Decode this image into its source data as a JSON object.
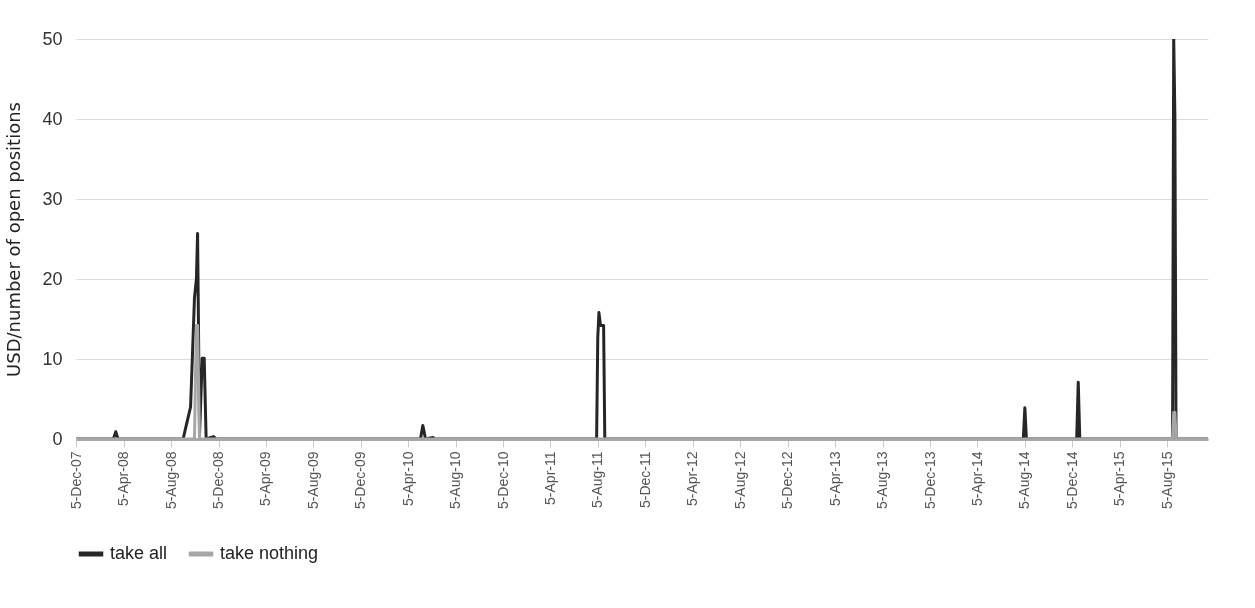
{
  "chart_data": {
    "type": "line",
    "ylabel": "USD/number of open positions",
    "legend": "bottom",
    "grid": "y",
    "x": [
      "2007-12-05",
      "2008-03-10",
      "2008-03-16",
      "2008-03-22",
      "2008-09-05",
      "2008-09-11",
      "2008-09-24",
      "2008-09-29",
      "2008-10-04",
      "2008-10-09",
      "2008-10-12",
      "2008-10-17",
      "2008-10-24",
      "2008-10-29",
      "2008-11-03",
      "2008-11-22",
      "2008-11-28",
      "2010-05-07",
      "2010-05-13",
      "2010-05-20",
      "2010-06-08",
      "2010-06-12",
      "2011-08-02",
      "2011-08-05",
      "2011-08-08",
      "2011-08-12",
      "2011-08-20",
      "2011-08-23",
      "2014-08-01",
      "2014-08-05",
      "2014-08-09",
      "2014-12-16",
      "2014-12-20",
      "2014-12-24",
      "2015-08-19",
      "2015-08-22",
      "2015-08-25",
      "2015-08-28",
      "2015-11-18"
    ],
    "series": [
      {
        "name": "take all",
        "color": "#262626",
        "values": [
          0,
          0,
          0.9,
          0,
          0,
          1.3,
          4,
          10.7,
          17.6,
          20,
          25.7,
          0.5,
          10.1,
          10.1,
          0,
          0.3,
          0,
          0,
          1.7,
          0,
          0.2,
          0,
          0,
          12.7,
          15.8,
          14.2,
          14.2,
          0,
          0,
          3.9,
          0,
          0,
          7.1,
          0,
          0,
          50,
          40.5,
          0,
          0
        ]
      },
      {
        "name": "take nothing",
        "color": "#a6a6a6",
        "values": [
          0,
          0,
          0,
          0,
          0,
          0,
          0,
          0,
          0,
          14.2,
          14.2,
          0,
          0,
          0,
          0,
          0,
          0,
          0,
          0,
          0,
          0,
          0,
          0,
          0,
          0,
          0,
          0,
          0,
          0,
          0,
          0,
          0,
          0,
          0,
          0,
          3.3,
          3.3,
          0,
          0
        ]
      }
    ],
    "xlim": [
      "2007-12-05",
      "2015-11-18"
    ],
    "xticks": [
      {
        "value": "2007-12-05",
        "label": "5-Dec-07"
      },
      {
        "value": "2008-04-05",
        "label": "5-Apr-08"
      },
      {
        "value": "2008-08-05",
        "label": "5-Aug-08"
      },
      {
        "value": "2008-12-05",
        "label": "5-Dec-08"
      },
      {
        "value": "2009-04-05",
        "label": "5-Apr-09"
      },
      {
        "value": "2009-08-05",
        "label": "5-Aug-09"
      },
      {
        "value": "2009-12-05",
        "label": "5-Dec-09"
      },
      {
        "value": "2010-04-05",
        "label": "5-Apr-10"
      },
      {
        "value": "2010-08-05",
        "label": "5-Aug-10"
      },
      {
        "value": "2010-12-05",
        "label": "5-Dec-10"
      },
      {
        "value": "2011-04-05",
        "label": "5-Apr-11"
      },
      {
        "value": "2011-08-05",
        "label": "5-Aug-11"
      },
      {
        "value": "2011-12-05",
        "label": "5-Dec-11"
      },
      {
        "value": "2012-04-05",
        "label": "5-Apr-12"
      },
      {
        "value": "2012-08-05",
        "label": "5-Aug-12"
      },
      {
        "value": "2012-12-05",
        "label": "5-Dec-12"
      },
      {
        "value": "2013-04-05",
        "label": "5-Apr-13"
      },
      {
        "value": "2013-08-05",
        "label": "5-Aug-13"
      },
      {
        "value": "2013-12-05",
        "label": "5-Dec-13"
      },
      {
        "value": "2014-04-05",
        "label": "5-Apr-14"
      },
      {
        "value": "2014-08-05",
        "label": "5-Aug-14"
      },
      {
        "value": "2014-12-05",
        "label": "5-Dec-14"
      },
      {
        "value": "2015-04-05",
        "label": "5-Apr-15"
      },
      {
        "value": "2015-08-05",
        "label": "5-Aug-15"
      }
    ],
    "ylim": [
      0,
      50
    ],
    "yticks": [
      0,
      10,
      20,
      30,
      40,
      50
    ]
  }
}
